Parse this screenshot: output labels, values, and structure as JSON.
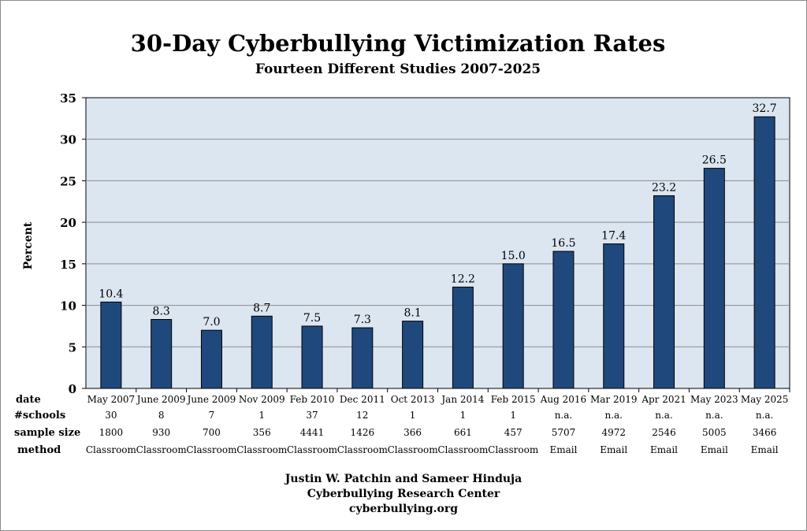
{
  "chart_data": {
    "type": "bar",
    "title": "30-Day Cyberbullying Victimization Rates",
    "subtitle": "Fourteen Different Studies 2007-2025",
    "ylabel": "Percent",
    "xlabel": "",
    "ylim": [
      0,
      35
    ],
    "yticks": [
      0,
      5,
      10,
      15,
      20,
      25,
      30,
      35
    ],
    "grid": true,
    "legend": "none",
    "categories": [
      "May 2007",
      "June 2009",
      "June 2009",
      "Nov 2009",
      "Feb 2010",
      "Dec 2011",
      "Oct 2013",
      "Jan 2014",
      "Feb 2015",
      "Aug 2016",
      "Mar 2019",
      "Apr 2021",
      "May 2023",
      "May 2025"
    ],
    "values": [
      10.4,
      8.3,
      7.0,
      8.7,
      7.5,
      7.3,
      8.1,
      12.2,
      15.0,
      16.5,
      17.4,
      23.2,
      26.5,
      32.7
    ],
    "value_labels": [
      "10.4",
      "8.3",
      "7.0",
      "8.7",
      "7.5",
      "7.3",
      "8.1",
      "12.2",
      "15.0",
      "16.5",
      "17.4",
      "23.2",
      "26.5",
      "32.7"
    ],
    "table_rows": [
      {
        "label": "#schools",
        "values": [
          "30",
          "8",
          "7",
          "1",
          "37",
          "12",
          "1",
          "1",
          "1",
          "n.a.",
          "n.a.",
          "n.a.",
          "n.a.",
          "n.a."
        ]
      },
      {
        "label": "sample size",
        "values": [
          "1800",
          "930",
          "700",
          "356",
          "4441",
          "1426",
          "366",
          "661",
          "457",
          "5707",
          "4972",
          "2546",
          "5005",
          "3466"
        ]
      },
      {
        "label": "method",
        "values": [
          "Classroom",
          "Classroom",
          "Classroom",
          "Classroom",
          "Classroom",
          "Classroom",
          "Classroom",
          "Classroom",
          "Classroom",
          "Email",
          "Email",
          "Email",
          "Email",
          "Email"
        ]
      }
    ],
    "date_row_label": "date",
    "bar_color": "#1f497d",
    "plot_bg": "#dce6f1",
    "credits": [
      "Justin W. Patchin and Sameer Hinduja",
      "Cyberbullying Research Center",
      "cyberbullying.org"
    ]
  }
}
